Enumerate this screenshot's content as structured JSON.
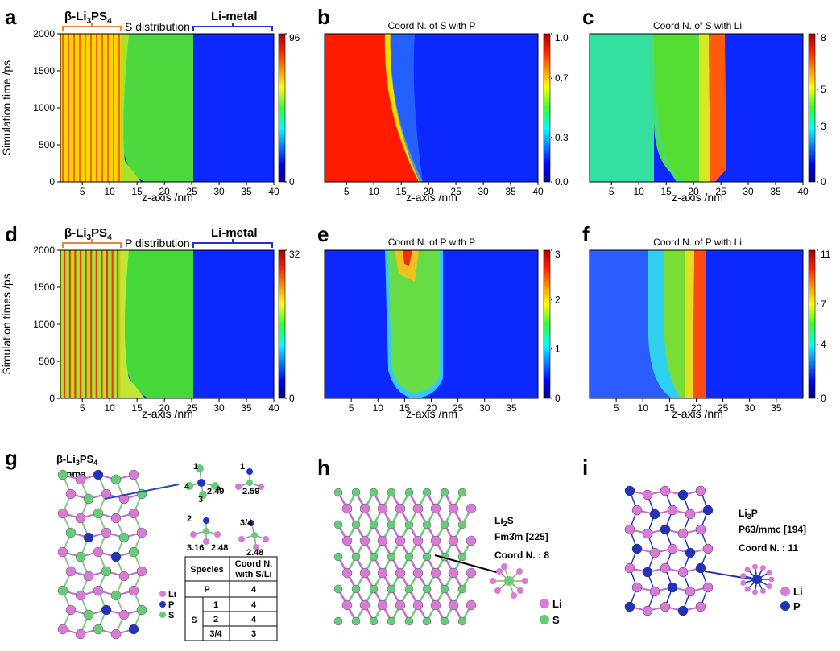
{
  "panel_letters": [
    "a",
    "b",
    "c",
    "d",
    "e",
    "f",
    "g",
    "h",
    "i"
  ],
  "chart_data": [
    {
      "type": "heatmap",
      "panel": "a",
      "title": "",
      "region_labels": [
        "β-Li3PS4",
        "S distribution",
        "Li-metal"
      ],
      "xlabel": "z-axis /nm",
      "ylabel": "Simulation time /ps",
      "xticks": [
        "5",
        "10",
        "15",
        "20",
        "25",
        "30",
        "35",
        "40"
      ],
      "yticks": [
        "0",
        "500",
        "1000",
        "1500",
        "2000"
      ],
      "xlim": [
        1,
        40
      ],
      "ylim": [
        0,
        2000
      ],
      "colorbar_ticks": [
        "96",
        "0"
      ],
      "clim": [
        0,
        96
      ]
    },
    {
      "type": "heatmap",
      "panel": "b",
      "title": "Coord N. of S with P",
      "xlabel": "z-axis /nm",
      "ylabel": "",
      "xticks": [
        "5",
        "10",
        "15",
        "20",
        "25",
        "30",
        "35",
        "40"
      ],
      "yticks": [],
      "xlim": [
        1,
        40
      ],
      "ylim": [
        0,
        2000
      ],
      "colorbar_ticks": [
        "1.0",
        "0.7",
        "0.3",
        "0.0"
      ],
      "clim": [
        0,
        1
      ]
    },
    {
      "type": "heatmap",
      "panel": "c",
      "title": "Coord N. of S with Li",
      "xlabel": "z-axis /nm",
      "ylabel": "",
      "xticks": [
        "5",
        "10",
        "15",
        "20",
        "25",
        "30",
        "35",
        "40"
      ],
      "yticks": [],
      "xlim": [
        1,
        40
      ],
      "ylim": [
        0,
        2000
      ],
      "colorbar_ticks": [
        "8",
        "5",
        "3",
        "0"
      ],
      "clim": [
        0,
        8
      ]
    },
    {
      "type": "heatmap",
      "panel": "d",
      "title": "",
      "region_labels": [
        "β-Li3PS4",
        "P distribution",
        "Li-metal"
      ],
      "xlabel": "z-axis /nm",
      "ylabel": "Simulation times /ps",
      "xticks": [
        "5",
        "10",
        "15",
        "20",
        "25",
        "30",
        "35",
        "40"
      ],
      "yticks": [
        "0",
        "500",
        "1000",
        "1500",
        "2000"
      ],
      "xlim": [
        1,
        40
      ],
      "ylim": [
        0,
        2000
      ],
      "colorbar_ticks": [
        "32",
        "0"
      ],
      "clim": [
        0,
        32
      ]
    },
    {
      "type": "heatmap",
      "panel": "e",
      "title": "Coord N. of P with P",
      "xlabel": "z-axis /nm",
      "ylabel": "",
      "xticks": [
        "5",
        "10",
        "15",
        "20",
        "25",
        "30",
        "35"
      ],
      "yticks": [],
      "xlim": [
        0,
        40
      ],
      "ylim": [
        0,
        2000
      ],
      "colorbar_ticks": [
        "3",
        "2",
        "1",
        "0"
      ],
      "clim": [
        0,
        3
      ]
    },
    {
      "type": "heatmap",
      "panel": "f",
      "title": "Coord N. of P with Li",
      "xlabel": "z-axis /nm",
      "ylabel": "",
      "xticks": [
        "5",
        "10",
        "15",
        "20",
        "25",
        "30",
        "35"
      ],
      "yticks": [],
      "xlim": [
        0,
        40
      ],
      "ylim": [
        0,
        2000
      ],
      "colorbar_ticks": [
        "11",
        "7",
        "4",
        "0"
      ],
      "clim": [
        0,
        11
      ]
    }
  ],
  "panel_g": {
    "title_main": "β-Li",
    "title_sub": "3",
    "title_rest": "PS",
    "title_sub2": "4",
    "space_group": "Pnma",
    "site_labels": [
      "1",
      "4",
      "2",
      "3",
      "1",
      "2.49",
      "2.59",
      "2",
      "3.16",
      "2.48",
      "3/4",
      "2.48"
    ],
    "legend": [
      "Li",
      "P",
      "S"
    ],
    "table": {
      "headers": [
        "Species",
        "Coord N. with S/Li"
      ],
      "rows": [
        [
          "P",
          "",
          "4"
        ],
        [
          "S",
          "1",
          "4"
        ],
        [
          "",
          "2",
          "4"
        ],
        [
          "",
          "3/4",
          "3"
        ]
      ]
    }
  },
  "panel_h": {
    "formula": "Li",
    "formula_sub": "2",
    "formula_rest": "S",
    "space_group": "Fm3̄m [225]",
    "coord": "Coord N. : 8",
    "legend": [
      "Li",
      "S"
    ]
  },
  "panel_i": {
    "formula": "Li",
    "formula_sub": "3",
    "formula_rest": "P",
    "space_group": "P63/mmc [194]",
    "coord": "Coord N. : 11",
    "legend": [
      "Li",
      "P"
    ]
  },
  "colors": {
    "Li": "#d97ad9",
    "P": "#2233bb",
    "S": "#66cc77",
    "bracket_orange": "#e8843c",
    "bracket_blue": "#2233cc"
  }
}
